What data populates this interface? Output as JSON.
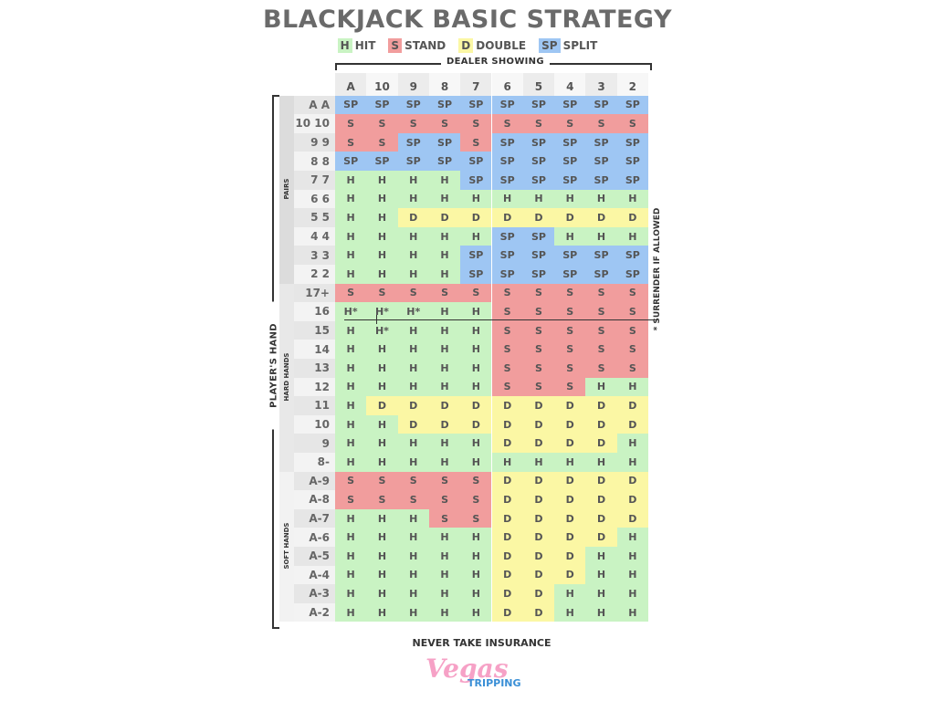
{
  "title": "BLACKJACK BASIC STRATEGY",
  "legend": [
    {
      "code": "H",
      "label": "HIT",
      "color": "#c9f3c3"
    },
    {
      "code": "S",
      "label": "STAND",
      "color": "#f19d9d"
    },
    {
      "code": "D",
      "label": "DOUBLE",
      "color": "#fbf7a4"
    },
    {
      "code": "SP",
      "label": "SPLIT",
      "color": "#9ec6f3"
    }
  ],
  "dealer_label": "DEALER SHOWING",
  "dealer_cards": [
    "A",
    "10",
    "9",
    "8",
    "7",
    "6",
    "5",
    "4",
    "3",
    "2"
  ],
  "players_label": "PLAYER'S HAND",
  "groups": [
    {
      "label": "PAIRS",
      "rows": [
        {
          "hand": "A A",
          "actions": [
            "SP",
            "SP",
            "SP",
            "SP",
            "SP",
            "SP",
            "SP",
            "SP",
            "SP",
            "SP"
          ]
        },
        {
          "hand": "10 10",
          "actions": [
            "S",
            "S",
            "S",
            "S",
            "S",
            "S",
            "S",
            "S",
            "S",
            "S"
          ]
        },
        {
          "hand": "9 9",
          "actions": [
            "S",
            "S",
            "SP",
            "SP",
            "S",
            "SP",
            "SP",
            "SP",
            "SP",
            "SP"
          ]
        },
        {
          "hand": "8 8",
          "actions": [
            "SP",
            "SP",
            "SP",
            "SP",
            "SP",
            "SP",
            "SP",
            "SP",
            "SP",
            "SP"
          ]
        },
        {
          "hand": "7 7",
          "actions": [
            "H",
            "H",
            "H",
            "H",
            "SP",
            "SP",
            "SP",
            "SP",
            "SP",
            "SP"
          ]
        },
        {
          "hand": "6 6",
          "actions": [
            "H",
            "H",
            "H",
            "H",
            "H",
            "H",
            "H",
            "H",
            "H",
            "H"
          ]
        },
        {
          "hand": "5 5",
          "actions": [
            "H",
            "H",
            "D",
            "D",
            "D",
            "D",
            "D",
            "D",
            "D",
            "D"
          ]
        },
        {
          "hand": "4 4",
          "actions": [
            "H",
            "H",
            "H",
            "H",
            "H",
            "SP",
            "SP",
            "H",
            "H",
            "H"
          ]
        },
        {
          "hand": "3 3",
          "actions": [
            "H",
            "H",
            "H",
            "H",
            "SP",
            "SP",
            "SP",
            "SP",
            "SP",
            "SP"
          ]
        },
        {
          "hand": "2 2",
          "actions": [
            "H",
            "H",
            "H",
            "H",
            "SP",
            "SP",
            "SP",
            "SP",
            "SP",
            "SP"
          ]
        }
      ]
    },
    {
      "label": "HARD HANDS",
      "rows": [
        {
          "hand": "17+",
          "actions": [
            "S",
            "S",
            "S",
            "S",
            "S",
            "S",
            "S",
            "S",
            "S",
            "S"
          ]
        },
        {
          "hand": "16",
          "actions": [
            "H*",
            "H*",
            "H*",
            "H",
            "H",
            "S",
            "S",
            "S",
            "S",
            "S"
          ]
        },
        {
          "hand": "15",
          "actions": [
            "H",
            "H*",
            "H",
            "H",
            "H",
            "S",
            "S",
            "S",
            "S",
            "S"
          ]
        },
        {
          "hand": "14",
          "actions": [
            "H",
            "H",
            "H",
            "H",
            "H",
            "S",
            "S",
            "S",
            "S",
            "S"
          ]
        },
        {
          "hand": "13",
          "actions": [
            "H",
            "H",
            "H",
            "H",
            "H",
            "S",
            "S",
            "S",
            "S",
            "S"
          ]
        },
        {
          "hand": "12",
          "actions": [
            "H",
            "H",
            "H",
            "H",
            "H",
            "S",
            "S",
            "S",
            "H",
            "H"
          ]
        },
        {
          "hand": "11",
          "actions": [
            "H",
            "D",
            "D",
            "D",
            "D",
            "D",
            "D",
            "D",
            "D",
            "D"
          ]
        },
        {
          "hand": "10",
          "actions": [
            "H",
            "H",
            "D",
            "D",
            "D",
            "D",
            "D",
            "D",
            "D",
            "D"
          ]
        },
        {
          "hand": "9",
          "actions": [
            "H",
            "H",
            "H",
            "H",
            "H",
            "D",
            "D",
            "D",
            "D",
            "H"
          ]
        },
        {
          "hand": "8-",
          "actions": [
            "H",
            "H",
            "H",
            "H",
            "H",
            "H",
            "H",
            "H",
            "H",
            "H"
          ]
        }
      ]
    },
    {
      "label": "SOFT HANDS",
      "rows": [
        {
          "hand": "A-9",
          "actions": [
            "S",
            "S",
            "S",
            "S",
            "S",
            "D",
            "D",
            "D",
            "D",
            "D"
          ]
        },
        {
          "hand": "A-8",
          "actions": [
            "S",
            "S",
            "S",
            "S",
            "S",
            "D",
            "D",
            "D",
            "D",
            "D"
          ]
        },
        {
          "hand": "A-7",
          "actions": [
            "H",
            "H",
            "H",
            "S",
            "S",
            "D",
            "D",
            "D",
            "D",
            "D"
          ]
        },
        {
          "hand": "A-6",
          "actions": [
            "H",
            "H",
            "H",
            "H",
            "H",
            "D",
            "D",
            "D",
            "D",
            "H"
          ]
        },
        {
          "hand": "A-5",
          "actions": [
            "H",
            "H",
            "H",
            "H",
            "H",
            "D",
            "D",
            "D",
            "H",
            "H"
          ]
        },
        {
          "hand": "A-4",
          "actions": [
            "H",
            "H",
            "H",
            "H",
            "H",
            "D",
            "D",
            "D",
            "H",
            "H"
          ]
        },
        {
          "hand": "A-3",
          "actions": [
            "H",
            "H",
            "H",
            "H",
            "H",
            "D",
            "D",
            "H",
            "H",
            "H"
          ]
        },
        {
          "hand": "A-2",
          "actions": [
            "H",
            "H",
            "H",
            "H",
            "H",
            "D",
            "D",
            "H",
            "H",
            "H"
          ]
        }
      ]
    }
  ],
  "surrender_note": "* SURRENDER IF ALLOWED",
  "footer_note": "NEVER TAKE INSURANCE",
  "logo": {
    "top": "Vegas",
    "bottom": "TRIPPING"
  }
}
